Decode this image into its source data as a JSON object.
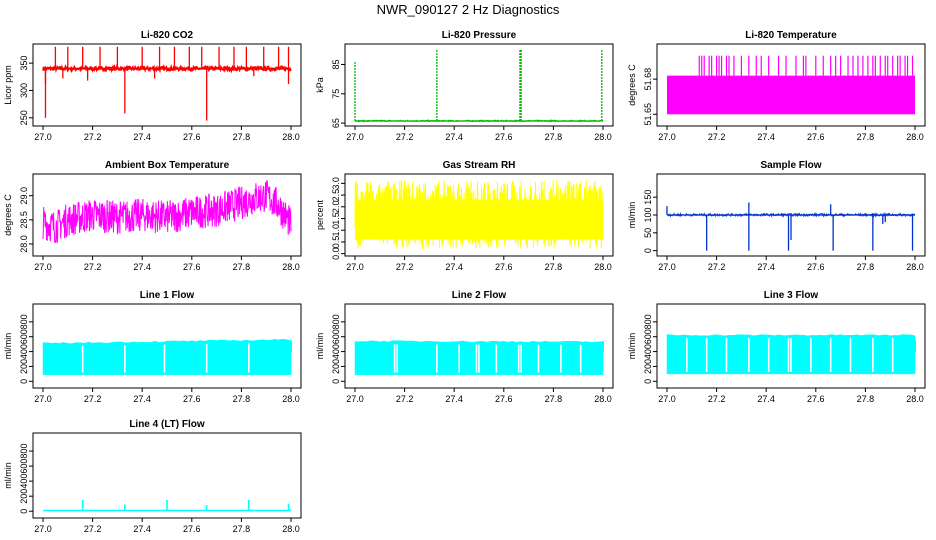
{
  "page_title": "NWR_090127  2 Hz Diagnostics",
  "chart_data": [
    {
      "type": "line",
      "title": "Li-820 CO2",
      "ylabel": "Licor ppm",
      "xlim": [
        27.0,
        28.0
      ],
      "ylim": [
        235,
        385
      ],
      "x_ticks": [
        "27.0",
        "27.2",
        "27.4",
        "27.6",
        "27.8",
        "28.0"
      ],
      "y_ticks": [
        250,
        300,
        350
      ],
      "color": "#ff0000",
      "series": [
        {
          "baseline": 340,
          "band": [
            336,
            344
          ],
          "spikes": [
            [
              27.01,
              250
            ],
            [
              27.01,
              312
            ],
            [
              27.05,
              380
            ],
            [
              27.08,
              322
            ],
            [
              27.1,
              380
            ],
            [
              27.16,
              380
            ],
            [
              27.18,
              318
            ],
            [
              27.23,
              380
            ],
            [
              27.3,
              380
            ],
            [
              27.33,
              258
            ],
            [
              27.4,
              380
            ],
            [
              27.45,
              322
            ],
            [
              27.47,
              380
            ],
            [
              27.53,
              380
            ],
            [
              27.59,
              380
            ],
            [
              27.64,
              380
            ],
            [
              27.66,
              245
            ],
            [
              27.71,
              380
            ],
            [
              27.77,
              380
            ],
            [
              27.82,
              380
            ],
            [
              27.85,
              326
            ],
            [
              27.89,
              380
            ],
            [
              27.95,
              380
            ],
            [
              27.99,
              380
            ],
            [
              27.99,
              312
            ]
          ]
        }
      ]
    },
    {
      "type": "line",
      "title": "Li-820 Pressure",
      "ylabel": "kPa",
      "xlim": [
        27.0,
        28.0
      ],
      "ylim": [
        64,
        92
      ],
      "x_ticks": [
        "27.0",
        "27.2",
        "27.4",
        "27.6",
        "27.8",
        "28.0"
      ],
      "y_ticks": [
        65,
        75,
        85
      ],
      "color": "#00bb00",
      "series": [
        {
          "baseline": 65.7,
          "band": [
            65.5,
            66.0
          ],
          "spikes": [
            [
              27.0,
              86.0
            ],
            [
              27.33,
              90.0
            ],
            [
              27.665,
              90.0
            ],
            [
              27.67,
              90.0
            ],
            [
              27.995,
              90.0
            ]
          ]
        }
      ]
    },
    {
      "type": "line",
      "title": "Li-820 Temperature",
      "ylabel": "degrees C",
      "xlim": [
        27.0,
        28.0
      ],
      "ylim": [
        51.64,
        51.71
      ],
      "x_ticks": [
        "27.0",
        "27.2",
        "27.4",
        "27.6",
        "27.8",
        "28.0"
      ],
      "y_ticks": [
        "51.65",
        "51.68"
      ],
      "color": "#ff00ff",
      "series": [
        {
          "baseline_low": 51.65,
          "baseline_high": 51.683,
          "spike_top": 51.7,
          "spike_x": [
            27.13,
            27.14,
            27.15,
            27.17,
            27.18,
            27.2,
            27.21,
            27.22,
            27.24,
            27.25,
            27.27,
            27.3,
            27.33,
            27.36,
            27.38,
            27.41,
            27.45,
            27.48,
            27.52,
            27.55,
            27.56,
            27.6,
            27.63,
            27.66,
            27.68,
            27.7,
            27.73,
            27.75,
            27.77,
            27.79,
            27.81,
            27.83,
            27.84,
            27.86,
            27.88,
            27.89,
            27.91,
            27.93,
            27.94,
            27.96,
            27.97,
            27.99
          ]
        }
      ]
    },
    {
      "type": "line",
      "title": "Ambient Box Temperature",
      "ylabel": "degrees C",
      "xlim": [
        27.0,
        28.0
      ],
      "ylim": [
        27.75,
        29.45
      ],
      "x_ticks": [
        "27.0",
        "27.2",
        "27.4",
        "27.6",
        "27.8",
        "28.0"
      ],
      "y_ticks": [
        "28.0",
        "28.5",
        "29.0"
      ],
      "color": "#ff00ff",
      "series": [
        {
          "trend_x": [
            27.0,
            27.05,
            27.1,
            27.2,
            27.3,
            27.4,
            27.5,
            27.6,
            27.7,
            27.8,
            27.85,
            27.9,
            27.95,
            28.0
          ],
          "trend_y": [
            28.45,
            28.35,
            28.5,
            28.6,
            28.55,
            28.6,
            28.55,
            28.65,
            28.7,
            28.85,
            28.95,
            29.0,
            28.8,
            28.4
          ],
          "noise": 0.35
        }
      ]
    },
    {
      "type": "line",
      "title": "Gas Stream RH",
      "ylabel": "percent",
      "xlim": [
        27.0,
        28.0
      ],
      "ylim": [
        -0.1,
        3.4
      ],
      "x_ticks": [
        "27.0",
        "27.2",
        "27.4",
        "27.6",
        "27.8",
        "28.0"
      ],
      "y_ticks": [
        "0.0",
        "0.5",
        "1.0",
        "1.5",
        "2.0",
        "2.5",
        "3.0"
      ],
      "color": "#ffff00",
      "series": [
        {
          "low": 0.2,
          "high": 3.15,
          "band": [
            0.6,
            2.3
          ]
        }
      ]
    },
    {
      "type": "line",
      "title": "Sample Flow",
      "ylabel": "ml/min",
      "xlim": [
        27.0,
        28.0
      ],
      "ylim": [
        -15,
        215
      ],
      "x_ticks": [
        "27.0",
        "27.2",
        "27.4",
        "27.6",
        "27.8",
        "28.0"
      ],
      "y_ticks": [
        0,
        50,
        100,
        150
      ],
      "color": "#0033cc",
      "series": [
        {
          "baseline": 100,
          "band": [
            97,
            104
          ],
          "spikes": [
            [
              27.0,
              125
            ],
            [
              27.16,
              0
            ],
            [
              27.33,
              135
            ],
            [
              27.33,
              0
            ],
            [
              27.49,
              0
            ],
            [
              27.5,
              30
            ],
            [
              27.66,
              130
            ],
            [
              27.67,
              0
            ],
            [
              27.83,
              0
            ],
            [
              27.87,
              75
            ],
            [
              27.88,
              80
            ],
            [
              27.99,
              0
            ]
          ]
        }
      ]
    },
    {
      "type": "area",
      "title": "Line 1 Flow",
      "ylabel": "ml/min",
      "xlim": [
        27.0,
        28.0
      ],
      "ylim": [
        -90,
        1040
      ],
      "x_ticks": [
        "27.0",
        "27.2",
        "27.4",
        "27.6",
        "27.8",
        "28.0"
      ],
      "y_ticks": [
        0,
        200,
        400,
        600,
        800
      ],
      "color": "#00ffff",
      "series": [
        {
          "low": 90,
          "high_start": 510,
          "high_end": 560,
          "gaps": [
            27.16,
            27.33,
            27.49,
            27.66,
            27.83
          ]
        }
      ]
    },
    {
      "type": "area",
      "title": "Line 2 Flow",
      "ylabel": "ml/min",
      "xlim": [
        27.0,
        28.0
      ],
      "ylim": [
        -90,
        1040
      ],
      "x_ticks": [
        "27.0",
        "27.2",
        "27.4",
        "27.6",
        "27.8",
        "28.0"
      ],
      "y_ticks": [
        0,
        200,
        400,
        600,
        800
      ],
      "color": "#00ffff",
      "series": [
        {
          "low": 90,
          "high_start": 540,
          "high_end": 530,
          "gaps": [
            27.16,
            27.17,
            27.33,
            27.42,
            27.49,
            27.5,
            27.57,
            27.66,
            27.67,
            27.74,
            27.83,
            27.91
          ]
        }
      ]
    },
    {
      "type": "area",
      "title": "Line 3 Flow",
      "ylabel": "ml/min",
      "xlim": [
        27.0,
        28.0
      ],
      "ylim": [
        -90,
        1040
      ],
      "x_ticks": [
        "27.0",
        "27.2",
        "27.4",
        "27.6",
        "27.8",
        "28.0"
      ],
      "y_ticks": [
        0,
        200,
        400,
        600,
        800
      ],
      "color": "#00ffff",
      "series": [
        {
          "low": 100,
          "high_start": 620,
          "high_end": 620,
          "gaps": [
            27.08,
            27.16,
            27.24,
            27.33,
            27.41,
            27.49,
            27.5,
            27.58,
            27.66,
            27.74,
            27.83,
            27.91
          ]
        }
      ]
    },
    {
      "type": "line",
      "title": "Line 4 (LT) Flow",
      "ylabel": "ml/min",
      "xlim": [
        27.0,
        28.0
      ],
      "ylim": [
        -90,
        1040
      ],
      "x_ticks": [
        "27.0",
        "27.2",
        "27.4",
        "27.6",
        "27.8",
        "28.0"
      ],
      "y_ticks": [
        0,
        200,
        400,
        600,
        800
      ],
      "color": "#00ffff",
      "series": [
        {
          "baseline": 10,
          "spikes": [
            [
              27.16,
              150
            ],
            [
              27.33,
              90
            ],
            [
              27.5,
              150
            ],
            [
              27.66,
              80
            ],
            [
              27.83,
              150
            ],
            [
              27.99,
              100
            ]
          ]
        }
      ]
    }
  ]
}
